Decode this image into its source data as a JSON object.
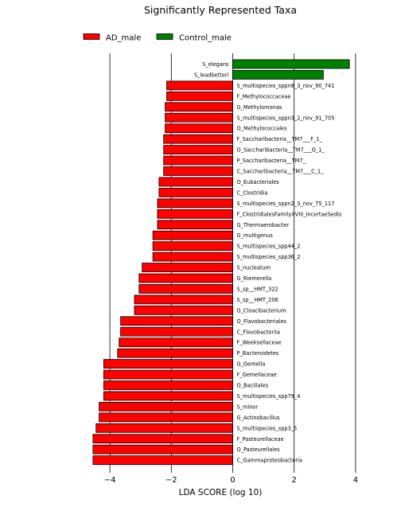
{
  "chart_data": {
    "type": "bar",
    "orientation": "horizontal",
    "title": "Significantly Represented Taxa",
    "xlabel": "LDA SCORE (log 10)",
    "ylabel": "",
    "xlim": [
      -5,
      4
    ],
    "xticks": [
      -4,
      -2,
      0,
      2,
      4
    ],
    "grid": "vertical",
    "legend_position": "top-center",
    "series": [
      {
        "name": "AD_male",
        "color": "#ff0000"
      },
      {
        "name": "Control_male",
        "color": "#008000"
      }
    ],
    "bars": [
      {
        "label": "S_elegans",
        "value": 3.8,
        "group": "Control_male"
      },
      {
        "label": "S_leadbetteri",
        "value": 2.95,
        "group": "Control_male"
      },
      {
        "label": "S_multispecies_sppn8_3_nov_90_741",
        "value": -2.15,
        "group": "AD_male"
      },
      {
        "label": "F_Methylococcaceae",
        "value": -2.15,
        "group": "AD_male"
      },
      {
        "label": "G_Methylomonas",
        "value": -2.2,
        "group": "AD_male"
      },
      {
        "label": "S_multispecies_sppn3_2_nov_91_705",
        "value": -2.2,
        "group": "AD_male"
      },
      {
        "label": "O_Methylococcales",
        "value": -2.2,
        "group": "AD_male"
      },
      {
        "label": "F_Saccharibacteria__TM7___F_1_",
        "value": -2.25,
        "group": "AD_male"
      },
      {
        "label": "O_Saccharibacteria__TM7___O_1_",
        "value": -2.25,
        "group": "AD_male"
      },
      {
        "label": "P_Saccharibacteria__TM7_",
        "value": -2.25,
        "group": "AD_male"
      },
      {
        "label": "C_Saccharibacteria__TM7___C_1_",
        "value": -2.25,
        "group": "AD_male"
      },
      {
        "label": "O_Eubacteriales",
        "value": -2.4,
        "group": "AD_male"
      },
      {
        "label": "C_Clostridia",
        "value": -2.4,
        "group": "AD_male"
      },
      {
        "label": "S_multispecies_sppn2_3_nov_75_117",
        "value": -2.45,
        "group": "AD_male"
      },
      {
        "label": "F_ClostridialesFamilyXVIII_IncertaeSedis",
        "value": -2.45,
        "group": "AD_male"
      },
      {
        "label": "G_Thermaerobacter",
        "value": -2.45,
        "group": "AD_male"
      },
      {
        "label": "G_multigenus",
        "value": -2.6,
        "group": "AD_male"
      },
      {
        "label": "S_multispecies_spp44_2",
        "value": -2.6,
        "group": "AD_male"
      },
      {
        "label": "S_multispecies_spp36_2",
        "value": -2.6,
        "group": "AD_male"
      },
      {
        "label": "S_nucleatum",
        "value": -2.95,
        "group": "AD_male"
      },
      {
        "label": "G_Riemerella",
        "value": -3.05,
        "group": "AD_male"
      },
      {
        "label": "S_sp__HMT_322",
        "value": -3.05,
        "group": "AD_male"
      },
      {
        "label": "S_sp__HMT_206",
        "value": -3.2,
        "group": "AD_male"
      },
      {
        "label": "G_Cloacibacterium",
        "value": -3.2,
        "group": "AD_male"
      },
      {
        "label": "O_Flavobacteriales",
        "value": -3.65,
        "group": "AD_male"
      },
      {
        "label": "C_Flavobacteriia",
        "value": -3.65,
        "group": "AD_male"
      },
      {
        "label": "F_Weeksellaceae",
        "value": -3.7,
        "group": "AD_male"
      },
      {
        "label": "P_Bacteroidetes",
        "value": -3.75,
        "group": "AD_male"
      },
      {
        "label": "G_Gemella",
        "value": -4.2,
        "group": "AD_male"
      },
      {
        "label": "F_Gemellaceae",
        "value": -4.2,
        "group": "AD_male"
      },
      {
        "label": "O_Bacillales",
        "value": -4.2,
        "group": "AD_male"
      },
      {
        "label": "S_multispecies_spp79_4",
        "value": -4.2,
        "group": "AD_male"
      },
      {
        "label": "S_minor",
        "value": -4.35,
        "group": "AD_male"
      },
      {
        "label": "G_Actinobacillus",
        "value": -4.35,
        "group": "AD_male"
      },
      {
        "label": "S_multispecies_spp3_5",
        "value": -4.45,
        "group": "AD_male"
      },
      {
        "label": "F_Pasteurellaceae",
        "value": -4.55,
        "group": "AD_male"
      },
      {
        "label": "O_Pasteurellales",
        "value": -4.55,
        "group": "AD_male"
      },
      {
        "label": "C_Gammaproteobacteria",
        "value": -4.55,
        "group": "AD_male"
      }
    ]
  }
}
